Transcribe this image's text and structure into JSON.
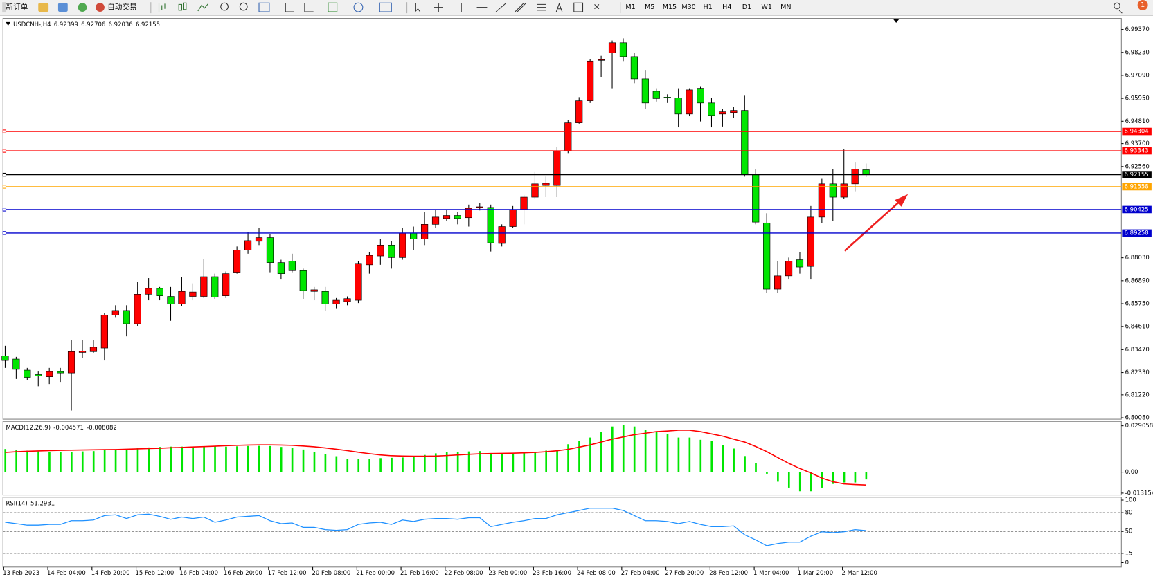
{
  "toolbar": {
    "new_order": "新订单",
    "auto_trade": "自动交易",
    "timeframes": [
      "M1",
      "M5",
      "M15",
      "M30",
      "H1",
      "H4",
      "D1",
      "W1",
      "MN"
    ],
    "notifications": 1
  },
  "chart_data": [
    {
      "type": "candlestick",
      "title": "USDCNH-,H4",
      "categories": [
        "13 Feb 2023",
        null,
        null,
        null,
        "14 Feb 04:00",
        null,
        null,
        null,
        "14 Feb 20:00",
        null,
        null,
        null,
        "15 Feb 12:00",
        null,
        null,
        null,
        "16 Feb 04:00",
        null,
        null,
        null,
        "16 Feb 20:00",
        null,
        null,
        null,
        "17 Feb 12:00",
        null,
        null,
        null,
        "20 Feb 08:00",
        null,
        null,
        null,
        "21 Feb 00:00",
        null,
        null,
        null,
        "21 Feb 16:00",
        null,
        null,
        null,
        "22 Feb 08:00",
        null,
        null,
        null,
        "23 Feb 00:00",
        null,
        null,
        null,
        "23 Feb 16:00",
        null,
        null,
        null,
        "24 Feb 08:00",
        null,
        null,
        null,
        "27 Feb 04:00",
        null,
        null,
        null,
        "27 Feb 20:00",
        null,
        null,
        null,
        "28 Feb 12:00",
        null,
        null,
        null,
        "1 Mar 04:00",
        null,
        null,
        null,
        "1 Mar 20:00",
        null,
        null,
        null,
        "2 Mar 12:00",
        null,
        null
      ],
      "open": [
        6.8315,
        6.83,
        6.8245,
        6.8223,
        6.8212,
        6.8238,
        6.8231,
        6.8333,
        6.8337,
        6.8355,
        6.8519,
        6.8541,
        6.8475,
        6.8622,
        6.8651,
        6.8611,
        6.8574,
        6.8611,
        6.8611,
        6.8709,
        6.8614,
        6.8731,
        6.8841,
        6.8885,
        6.8903,
        6.8779,
        6.8786,
        6.8739,
        6.8636,
        6.8636,
        6.8574,
        6.8585,
        6.8592,
        6.8768,
        6.8812,
        6.8866,
        6.8804,
        6.8925,
        6.8896,
        6.8969,
        6.8998,
        6.9013,
        6.9002,
        6.9053,
        6.9053,
        6.8874,
        6.8958,
        6.9042,
        6.9104,
        6.9162,
        6.9162,
        6.9334,
        6.9473,
        6.9583,
        6.9784,
        6.982,
        6.9871,
        6.9802,
        6.9692,
        6.963,
        6.9601,
        6.9597,
        6.9517,
        6.9645,
        6.9572,
        6.9517,
        6.9524,
        6.9535,
        6.9217,
        6.8976,
        6.8647,
        6.8713,
        6.8793,
        6.876,
        6.9005,
        6.917,
        6.9104,
        6.917,
        6.92399
      ],
      "high": [
        6.8366,
        6.8311,
        6.8256,
        6.8238,
        6.8256,
        6.8256,
        6.8395,
        6.8395,
        6.8395,
        6.853,
        6.8567,
        6.8567,
        6.8684,
        6.8702,
        6.8658,
        6.8658,
        6.8706,
        6.8676,
        6.8797,
        6.8724,
        6.8735,
        6.8859,
        6.8932,
        6.895,
        6.8921,
        6.8793,
        6.8823,
        6.8749,
        6.8658,
        6.8658,
        6.8603,
        6.8611,
        6.8786,
        6.883,
        6.8896,
        6.8885,
        6.895,
        6.8958,
        6.9031,
        6.9042,
        6.9042,
        6.9031,
        6.9067,
        6.9075,
        6.9067,
        6.8969,
        6.906,
        6.9115,
        6.9232,
        6.9206,
        6.9352,
        6.9488,
        6.9601,
        6.9791,
        6.9806,
        6.9882,
        6.9893,
        6.982,
        6.9736,
        6.9645,
        6.9615,
        6.9645,
        6.9645,
        6.9652,
        6.9597,
        6.9542,
        6.9553,
        6.9608,
        6.9243,
        6.9024,
        6.8786,
        6.8804,
        6.883,
        6.906,
        6.9195,
        6.9243,
        6.9341,
        6.9279,
        6.92706
      ],
      "low": [
        6.8256,
        6.8201,
        6.8194,
        6.8165,
        6.8176,
        6.8183,
        6.8044,
        6.8304,
        6.8329,
        6.8293,
        6.8505,
        6.8413,
        6.8464,
        6.8592,
        6.8592,
        6.849,
        6.8563,
        6.8592,
        6.8603,
        6.8596,
        6.8603,
        6.8724,
        6.8823,
        6.8866,
        6.8731,
        6.8695,
        6.8731,
        6.8596,
        6.8592,
        6.8538,
        6.8549,
        6.8567,
        6.8578,
        6.8724,
        6.8768,
        6.8749,
        6.8793,
        6.8841,
        6.8866,
        6.895,
        6.8987,
        6.8969,
        6.8958,
        6.9038,
        6.8834,
        6.8859,
        6.895,
        6.8969,
        6.9097,
        6.9104,
        6.9104,
        6.9323,
        6.9469,
        6.9572,
        6.97,
        6.9645,
        6.978,
        6.967,
        6.9542,
        6.9579,
        6.9572,
        6.9451,
        6.9506,
        6.948,
        6.9451,
        6.9455,
        6.9499,
        6.9206,
        6.8969,
        6.8629,
        6.8629,
        6.8695,
        6.8724,
        6.8695,
        6.8976,
        6.8987,
        6.9097,
        6.9133,
        6.92036
      ],
      "close": [
        6.8293,
        6.8249,
        6.8209,
        6.8216,
        6.8238,
        6.8231,
        6.8337,
        6.834,
        6.8359,
        6.8519,
        6.8541,
        6.8475,
        6.8622,
        6.8651,
        6.8614,
        6.8574,
        6.8636,
        6.8633,
        6.8709,
        6.8607,
        6.8724,
        6.8841,
        6.8888,
        6.8903,
        6.8779,
        6.8724,
        6.8739,
        6.864,
        6.8644,
        6.8574,
        6.8592,
        6.86,
        6.8775,
        6.8815,
        6.8866,
        6.8804,
        6.8925,
        6.8896,
        6.8969,
        6.9005,
        6.9013,
        6.8998,
        6.9049,
        6.9056,
        6.8877,
        6.8958,
        6.9042,
        6.9104,
        6.917,
        6.9173,
        6.9334,
        6.9473,
        6.9583,
        6.978,
        6.9787,
        6.9871,
        6.9802,
        6.9692,
        6.9572,
        6.9594,
        6.9597,
        6.9517,
        6.9637,
        6.9572,
        6.951,
        6.9528,
        6.9535,
        6.9217,
        6.898,
        6.8647,
        6.8713,
        6.8786,
        6.8757,
        6.9005,
        6.917,
        6.9104,
        6.917,
        6.9243,
        6.92155
      ],
      "up_color": "#ff0000",
      "down_color": "#00e600",
      "wick_color": "#000000",
      "ylim": [
        6.8001,
        6.9992
      ],
      "yticks": [
        {
          "value": 6.9937,
          "label": "6.99370"
        },
        {
          "value": 6.9823,
          "label": "6.98230"
        },
        {
          "value": 6.9709,
          "label": "6.97090"
        },
        {
          "value": 6.9595,
          "label": "6.95950"
        },
        {
          "value": 6.9481,
          "label": "6.94810"
        },
        {
          "value": 6.937,
          "label": "6.93700"
        },
        {
          "value": 6.9256,
          "label": "6.92560"
        },
        {
          "value": 6.8803,
          "label": "6.88030"
        },
        {
          "value": 6.8689,
          "label": "6.86890"
        },
        {
          "value": 6.8575,
          "label": "6.85750"
        },
        {
          "value": 6.8461,
          "label": "6.84610"
        },
        {
          "value": 6.8347,
          "label": "6.83470"
        },
        {
          "value": 6.8233,
          "label": "6.82330"
        },
        {
          "value": 6.8122,
          "label": "6.81220"
        },
        {
          "value": 6.8008,
          "label": "6.80080"
        }
      ],
      "hlines": [
        {
          "value": 6.94304,
          "color": "#ff0000"
        },
        {
          "value": 6.93343,
          "color": "#ff0000"
        },
        {
          "value": 6.92155,
          "color": "#000000"
        },
        {
          "value": 6.91558,
          "color": "#ffa500"
        },
        {
          "value": 6.90425,
          "color": "#0000cd"
        },
        {
          "value": 6.89258,
          "color": "#0000cd"
        }
      ]
    },
    {
      "type": "macd",
      "title": "MACD(12,26,9)",
      "histogram": [
        0.0145,
        0.014,
        0.0135,
        0.013,
        0.0128,
        0.0125,
        0.0128,
        0.013,
        0.0132,
        0.0138,
        0.0142,
        0.0145,
        0.015,
        0.0155,
        0.0158,
        0.016,
        0.016,
        0.016,
        0.0162,
        0.0162,
        0.016,
        0.0162,
        0.0164,
        0.0165,
        0.0164,
        0.0158,
        0.015,
        0.0142,
        0.0128,
        0.0115,
        0.01,
        0.0085,
        0.0082,
        0.0085,
        0.0088,
        0.009,
        0.0092,
        0.0098,
        0.0108,
        0.0118,
        0.0125,
        0.0128,
        0.013,
        0.0132,
        0.012,
        0.0112,
        0.0112,
        0.0118,
        0.0128,
        0.0135,
        0.0138,
        0.0175,
        0.0194,
        0.0217,
        0.0254,
        0.0286,
        0.0295,
        0.0286,
        0.0263,
        0.0254,
        0.024,
        0.0217,
        0.0217,
        0.0203,
        0.0194,
        0.0171,
        0.0148,
        0.0101,
        0.0055,
        -0.001,
        -0.006,
        -0.0097,
        -0.012,
        -0.012,
        -0.0097,
        -0.0074,
        -0.0065,
        -0.0065,
        -0.004571
      ],
      "signal": [
        0.0124,
        0.0128,
        0.0131,
        0.0133,
        0.0135,
        0.0137,
        0.0138,
        0.0139,
        0.014,
        0.0141,
        0.0142,
        0.0144,
        0.0146,
        0.0148,
        0.015,
        0.0153,
        0.0155,
        0.0158,
        0.016,
        0.0163,
        0.0166,
        0.0168,
        0.017,
        0.0171,
        0.0171,
        0.017,
        0.0168,
        0.0164,
        0.0159,
        0.0152,
        0.0144,
        0.0135,
        0.0125,
        0.0116,
        0.0108,
        0.0103,
        0.0101,
        0.01,
        0.01,
        0.0101,
        0.0104,
        0.0108,
        0.0112,
        0.0115,
        0.0117,
        0.0118,
        0.0119,
        0.0121,
        0.0124,
        0.0128,
        0.0134,
        0.0143,
        0.0157,
        0.0171,
        0.0189,
        0.0207,
        0.0221,
        0.0235,
        0.0244,
        0.0254,
        0.0258,
        0.0263,
        0.0263,
        0.0254,
        0.024,
        0.0226,
        0.0207,
        0.0189,
        0.0161,
        0.0129,
        0.0092,
        0.0055,
        0.0023,
        -0.0005,
        -0.0037,
        -0.006,
        -0.0074,
        -0.0078,
        -0.008082
      ],
      "histogram_color": "#00e600",
      "signal_color": "#ff0000",
      "ylim": [
        -0.0134,
        0.0309
      ],
      "yticks": [
        0.029058,
        {
          "value": 0,
          "label": "0.00"
        },
        -0.013154
      ]
    },
    {
      "type": "line",
      "title": "RSI(14)",
      "values": [
        64.7,
        62.4,
        60.0,
        60.0,
        61.2,
        61.2,
        67.1,
        67.1,
        68.2,
        75.3,
        76.5,
        70.6,
        76.5,
        77.6,
        74.1,
        69.4,
        72.9,
        70.6,
        72.9,
        64.7,
        68.2,
        72.9,
        74.1,
        75.3,
        67.1,
        62.4,
        63.5,
        56.5,
        56.5,
        52.9,
        51.8,
        52.9,
        61.2,
        63.5,
        64.7,
        61.2,
        68.2,
        65.9,
        69.4,
        70.6,
        70.6,
        69.4,
        71.8,
        71.8,
        57.6,
        61.2,
        64.7,
        67.1,
        70.6,
        70.6,
        76.5,
        80.0,
        83.5,
        87.1,
        87.1,
        87.1,
        83.5,
        75.3,
        67.1,
        67.1,
        65.9,
        62.4,
        65.9,
        61.2,
        57.6,
        57.6,
        58.8,
        44.7,
        36.5,
        27.1,
        30.6,
        32.9,
        32.9,
        42.4,
        49.4,
        48.2,
        49.4,
        52.9,
        51.2931
      ],
      "color": "#1e90ff",
      "ylim": [
        -7,
        103.5
      ],
      "yticks": [
        100,
        80,
        50,
        15,
        0
      ],
      "levels": [
        80,
        50,
        15
      ]
    }
  ]
}
